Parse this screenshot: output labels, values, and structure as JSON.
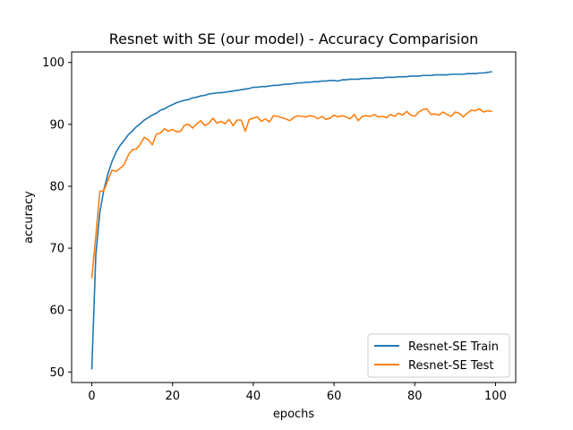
{
  "chart_data": {
    "type": "line",
    "title": "Resnet with SE (our model) - Accuracy Comparision",
    "xlabel": "epochs",
    "ylabel": "accuracy",
    "xlim": [
      -5,
      105
    ],
    "ylim": [
      48.3,
      101.7
    ],
    "xticks": [
      0,
      20,
      40,
      60,
      80,
      100
    ],
    "yticks": [
      50,
      60,
      70,
      80,
      90,
      100
    ],
    "grid": false,
    "legend_position": "lower-right",
    "series": [
      {
        "name": "Resnet-SE Train",
        "color": "#1f77b4",
        "x": [
          0,
          1,
          2,
          3,
          4,
          5,
          6,
          7,
          8,
          9,
          10,
          11,
          12,
          13,
          14,
          15,
          16,
          17,
          18,
          19,
          20,
          21,
          22,
          23,
          24,
          25,
          26,
          27,
          28,
          29,
          30,
          31,
          32,
          33,
          34,
          35,
          36,
          37,
          38,
          39,
          40,
          41,
          42,
          43,
          44,
          45,
          46,
          47,
          48,
          49,
          50,
          51,
          52,
          53,
          54,
          55,
          56,
          57,
          58,
          59,
          60,
          61,
          62,
          63,
          64,
          65,
          66,
          67,
          68,
          69,
          70,
          71,
          72,
          73,
          74,
          75,
          76,
          77,
          78,
          79,
          80,
          81,
          82,
          83,
          84,
          85,
          86,
          87,
          88,
          89,
          90,
          91,
          92,
          93,
          94,
          95,
          96,
          97,
          98,
          99
        ],
        "y": [
          50.5,
          69.0,
          75.8,
          79.5,
          82.0,
          84.0,
          85.5,
          86.6,
          87.4,
          88.3,
          88.9,
          89.6,
          90.1,
          90.7,
          91.1,
          91.5,
          91.8,
          92.3,
          92.5,
          92.9,
          93.2,
          93.5,
          93.7,
          93.9,
          94.0,
          94.3,
          94.4,
          94.6,
          94.7,
          94.9,
          95.0,
          95.1,
          95.1,
          95.2,
          95.3,
          95.4,
          95.5,
          95.6,
          95.7,
          95.8,
          96.0,
          96.0,
          96.1,
          96.1,
          96.2,
          96.3,
          96.3,
          96.4,
          96.5,
          96.5,
          96.6,
          96.7,
          96.7,
          96.8,
          96.8,
          96.9,
          96.9,
          97.0,
          97.0,
          97.1,
          97.1,
          97.0,
          97.2,
          97.2,
          97.3,
          97.3,
          97.3,
          97.4,
          97.4,
          97.4,
          97.5,
          97.5,
          97.5,
          97.6,
          97.6,
          97.6,
          97.7,
          97.7,
          97.7,
          97.8,
          97.8,
          97.8,
          97.9,
          97.9,
          97.9,
          98.0,
          98.0,
          98.0,
          98.0,
          98.1,
          98.1,
          98.1,
          98.1,
          98.2,
          98.2,
          98.2,
          98.3,
          98.3,
          98.4,
          98.5
        ]
      },
      {
        "name": "Resnet-SE Test",
        "color": "#ff7f0e",
        "x": [
          0,
          1,
          2,
          3,
          4,
          5,
          6,
          7,
          8,
          9,
          10,
          11,
          12,
          13,
          14,
          15,
          16,
          17,
          18,
          19,
          20,
          21,
          22,
          23,
          24,
          25,
          26,
          27,
          28,
          29,
          30,
          31,
          32,
          33,
          34,
          35,
          36,
          37,
          38,
          39,
          40,
          41,
          42,
          43,
          44,
          45,
          46,
          47,
          48,
          49,
          50,
          51,
          52,
          53,
          54,
          55,
          56,
          57,
          58,
          59,
          60,
          61,
          62,
          63,
          64,
          65,
          66,
          67,
          68,
          69,
          70,
          71,
          72,
          73,
          74,
          75,
          76,
          77,
          78,
          79,
          80,
          81,
          82,
          83,
          84,
          85,
          86,
          87,
          88,
          89,
          90,
          91,
          92,
          93,
          94,
          95,
          96,
          97,
          98,
          99
        ],
        "y": [
          65.2,
          72.0,
          79.2,
          79.3,
          81.0,
          82.6,
          82.4,
          82.9,
          83.5,
          85.0,
          85.9,
          86.0,
          86.8,
          87.9,
          87.5,
          86.7,
          88.4,
          88.6,
          89.3,
          88.9,
          89.2,
          88.8,
          88.9,
          89.9,
          90.0,
          89.4,
          90.1,
          90.6,
          89.8,
          90.2,
          91.0,
          90.2,
          90.5,
          90.1,
          90.8,
          89.8,
          90.7,
          90.7,
          88.9,
          90.8,
          91.0,
          91.2,
          90.5,
          90.9,
          90.4,
          91.4,
          91.3,
          91.1,
          90.9,
          90.6,
          91.1,
          91.4,
          91.3,
          91.2,
          91.4,
          91.3,
          90.9,
          91.3,
          90.8,
          91.0,
          91.5,
          91.2,
          91.4,
          91.2,
          90.9,
          91.6,
          90.6,
          91.3,
          91.4,
          91.3,
          91.6,
          91.2,
          91.3,
          91.1,
          91.6,
          91.3,
          91.8,
          91.5,
          92.1,
          91.5,
          91.3,
          92.0,
          92.4,
          92.5,
          91.6,
          91.7,
          91.5,
          92.0,
          91.6,
          91.3,
          92.0,
          91.8,
          91.2,
          91.8,
          92.3,
          92.2,
          92.5,
          92.0,
          92.2,
          92.1
        ]
      }
    ]
  }
}
